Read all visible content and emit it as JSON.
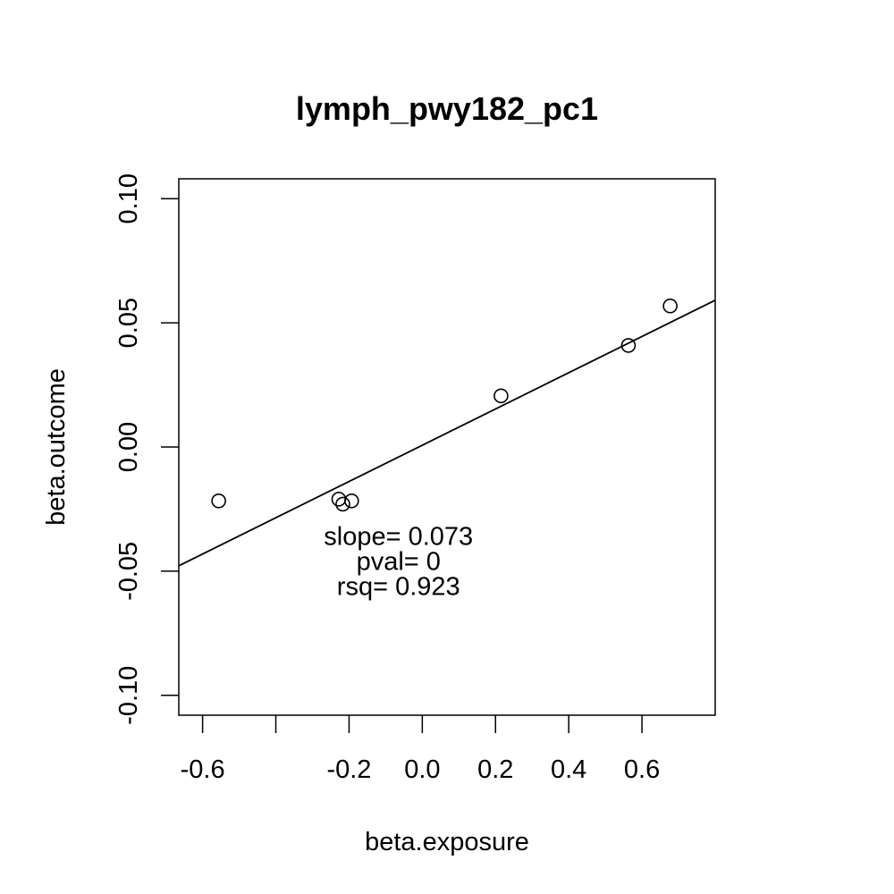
{
  "chart_data": {
    "type": "scatter",
    "title": "lymph_pwy182_pc1",
    "xlabel": "beta.exposure",
    "ylabel": "beta.outcome",
    "xlim": [
      -0.665,
      0.8
    ],
    "ylim": [
      -0.108,
      0.108
    ],
    "x_ticks": [
      -0.6,
      -0.4,
      -0.2,
      0.0,
      0.2,
      0.4,
      0.6
    ],
    "x_tick_labels": [
      "-0.6",
      "",
      "-0.2",
      "0.0",
      "0.2",
      "0.4",
      "0.6"
    ],
    "y_ticks": [
      -0.1,
      -0.05,
      0.0,
      0.05,
      0.1
    ],
    "y_tick_labels": [
      "-0.10",
      "-0.05",
      "0.00",
      "0.05",
      "0.10"
    ],
    "grid": false,
    "legend": "none",
    "points": [
      {
        "x": -0.556,
        "y": -0.0217
      },
      {
        "x": -0.228,
        "y": -0.021
      },
      {
        "x": -0.217,
        "y": -0.023
      },
      {
        "x": -0.193,
        "y": -0.0217
      },
      {
        "x": 0.215,
        "y": 0.0206
      },
      {
        "x": 0.563,
        "y": 0.0409
      },
      {
        "x": 0.677,
        "y": 0.0568
      }
    ],
    "fit_line": {
      "slope": 0.073,
      "intercept": 0.0007
    },
    "annotations": [
      "slope= 0.073",
      "pval= 0",
      "rsq= 0.923"
    ],
    "annotation_anchor": {
      "x": -0.065,
      "y": -0.0395
    }
  }
}
